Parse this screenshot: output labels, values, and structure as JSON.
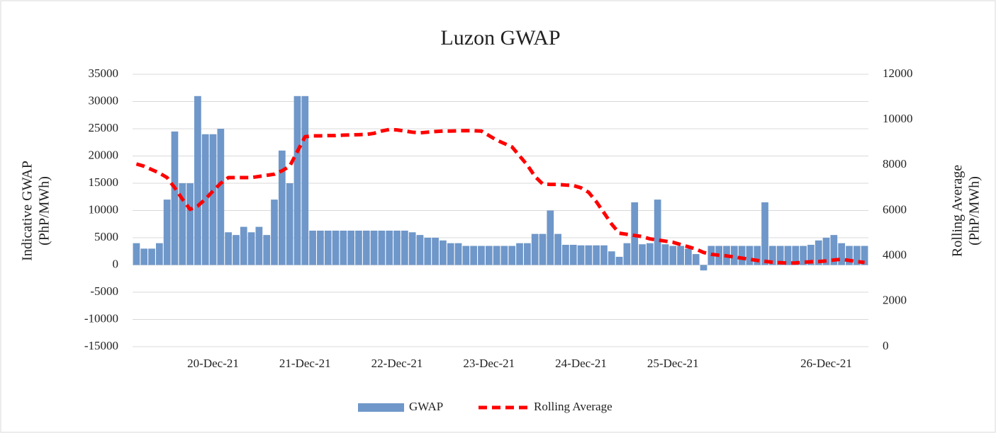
{
  "chart_data": {
    "type": "bar_line",
    "title": "Luzon GWAP",
    "ylabel": [
      "Indicative GWAP",
      "(PhP/MWh)"
    ],
    "y2label": [
      "Rolling Average",
      "(PhP/MWh)"
    ],
    "categories": [
      null,
      null,
      null,
      null,
      null,
      null,
      null,
      null,
      null,
      null,
      "20-Dec-21",
      null,
      null,
      null,
      null,
      null,
      null,
      null,
      null,
      null,
      null,
      null,
      "21-Dec-21",
      null,
      null,
      null,
      null,
      null,
      null,
      null,
      null,
      null,
      null,
      null,
      "22-Dec-21",
      null,
      null,
      null,
      null,
      null,
      null,
      null,
      null,
      null,
      null,
      null,
      "23-Dec-21",
      null,
      null,
      null,
      null,
      null,
      null,
      null,
      null,
      null,
      null,
      null,
      "24-Dec-21",
      null,
      null,
      null,
      null,
      null,
      null,
      null,
      null,
      null,
      null,
      null,
      "25-Dec-21",
      null,
      null,
      null,
      null,
      null,
      null,
      null,
      null,
      null,
      null,
      null,
      null,
      null,
      null,
      null,
      null,
      null,
      null,
      null,
      "26-Dec-21",
      null,
      null,
      null,
      null,
      null
    ],
    "series": [
      {
        "name": "GWAP",
        "color": "#6f97c9",
        "values": [
          4000,
          3000,
          3000,
          4000,
          12000,
          24500,
          15000,
          15000,
          31000,
          24000,
          24000,
          25000,
          6000,
          5500,
          7000,
          6000,
          7000,
          5500,
          12000,
          21000,
          15000,
          31000,
          31000,
          6300,
          6300,
          6300,
          6300,
          6300,
          6300,
          6300,
          6300,
          6300,
          6300,
          6300,
          6300,
          6300,
          6000,
          5500,
          5000,
          5000,
          4500,
          4000,
          4000,
          3500,
          3500,
          3500,
          3500,
          3500,
          3500,
          3500,
          4000,
          4000,
          5700,
          5700,
          10000,
          5700,
          3700,
          3700,
          3600,
          3600,
          3600,
          3600,
          2500,
          1500,
          4000,
          11500,
          3800,
          4000,
          12000,
          3800,
          3500,
          3500,
          3000,
          2000,
          -1000,
          3500,
          3500,
          3500,
          3500,
          3500,
          3500,
          3500,
          11500,
          3500,
          3500,
          3500,
          3500,
          3500,
          3700,
          4500,
          5000,
          5500,
          4000,
          3500,
          3500,
          3500
        ]
      },
      {
        "name": "Rolling Average",
        "color": "#ff0000",
        "axis": "y2",
        "values": [
          8050,
          7950,
          7800,
          7650,
          7450,
          7000,
          6500,
          6050,
          6200,
          6500,
          6860,
          7200,
          7450,
          7450,
          7450,
          7450,
          7500,
          7550,
          7600,
          7750,
          7950,
          8600,
          9250,
          9290,
          9290,
          9300,
          9300,
          9320,
          9330,
          9340,
          9350,
          9400,
          9500,
          9570,
          9550,
          9500,
          9450,
          9420,
          9450,
          9480,
          9500,
          9500,
          9510,
          9520,
          9510,
          9500,
          9300,
          9100,
          8950,
          8800,
          8400,
          8000,
          7500,
          7170,
          7150,
          7150,
          7120,
          7100,
          7000,
          6800,
          6390,
          5900,
          5400,
          5000,
          4950,
          4900,
          4850,
          4750,
          4700,
          4650,
          4600,
          4500,
          4400,
          4300,
          4150,
          4070,
          4030,
          4000,
          3950,
          3900,
          3850,
          3800,
          3760,
          3720,
          3700,
          3680,
          3690,
          3720,
          3740,
          3750,
          3780,
          3820,
          3850,
          3800,
          3750,
          3710
        ]
      }
    ],
    "ylim": [
      -15000,
      35000
    ],
    "yticks": [
      -15000,
      -10000,
      -5000,
      0,
      5000,
      10000,
      15000,
      20000,
      25000,
      30000,
      35000
    ],
    "y2lim": [
      0,
      12000
    ],
    "y2ticks": [
      0,
      2000,
      4000,
      6000,
      8000,
      10000,
      12000
    ],
    "grid": true,
    "legend": "bottom"
  }
}
